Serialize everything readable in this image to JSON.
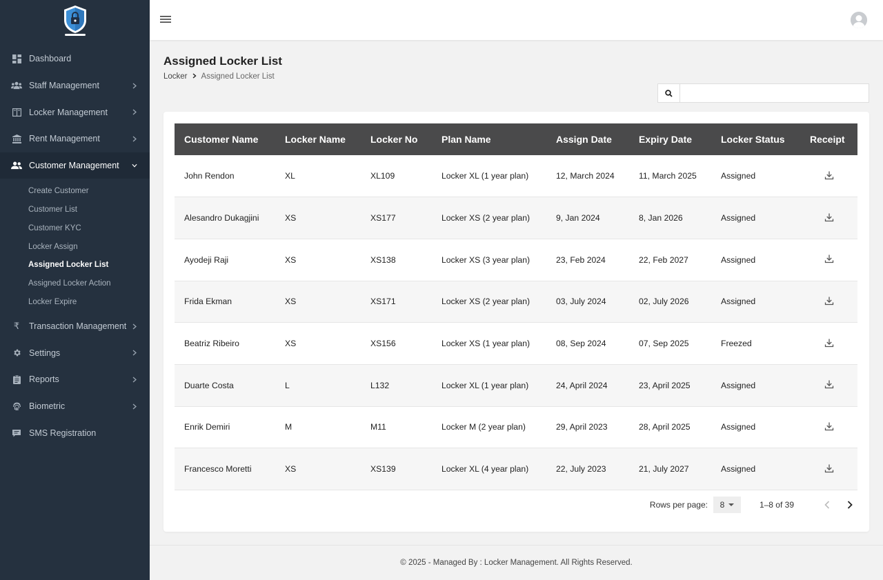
{
  "sidebar": {
    "logo_icon": "shield-lock-icon",
    "items": [
      {
        "label": "Dashboard",
        "icon": "dashboard-icon"
      },
      {
        "label": "Staff Management",
        "icon": "users-icon"
      },
      {
        "label": "Locker Management",
        "icon": "locker-icon"
      },
      {
        "label": "Rent Management",
        "icon": "bank-icon"
      },
      {
        "label": "Customer Management",
        "icon": "user-group-icon"
      },
      {
        "label": "Transaction Management",
        "icon": "rupee-icon"
      },
      {
        "label": "Settings",
        "icon": "gear-icon"
      },
      {
        "label": "Reports",
        "icon": "clipboard-icon"
      },
      {
        "label": "Biometric",
        "icon": "fingerprint-icon"
      },
      {
        "label": "SMS Registration",
        "icon": "sms-icon"
      }
    ],
    "customer_sub": [
      "Create Customer",
      "Customer List",
      "Customer KYC",
      "Locker Assign",
      "Assigned Locker List",
      "Assigned Locker Action",
      "Locker Expire"
    ]
  },
  "header": {
    "menu_icon": "hamburger-icon",
    "avatar_icon": "user-avatar-icon"
  },
  "page": {
    "title": "Assigned Locker List",
    "breadcrumb": {
      "root": "Locker",
      "current": "Assigned Locker List"
    }
  },
  "search": {
    "value": "",
    "placeholder": ""
  },
  "table": {
    "headers": [
      "Customer Name",
      "Locker Name",
      "Locker No",
      "Plan Name",
      "Assign Date",
      "Expiry Date",
      "Locker Status",
      "Receipt"
    ],
    "rows": [
      [
        "John Rendon",
        "XL",
        "XL109",
        "Locker XL (1 year plan)",
        "12, March 2024",
        "11, March 2025",
        "Assigned"
      ],
      [
        "Alesandro Dukagjini",
        "XS",
        "XS177",
        "Locker XS (2 year plan)",
        "9, Jan 2024",
        "8, Jan 2026",
        "Assigned"
      ],
      [
        "Ayodeji Raji",
        "XS",
        "XS138",
        "Locker XS (3 year plan)",
        "23, Feb 2024",
        "22, Feb 2027",
        "Assigned"
      ],
      [
        "Frida Ekman",
        "XS",
        "XS171",
        "Locker XS (2 year plan)",
        "03, July 2024",
        "02, July 2026",
        "Assigned"
      ],
      [
        "Beatriz Ribeiro",
        "XS",
        "XS156",
        "Locker XS (1 year plan)",
        "08, Sep 2024",
        "07, Sep 2025",
        "Freezed"
      ],
      [
        "Duarte Costa",
        "L",
        "L132",
        "Locker XL (1 year plan)",
        "24, April 2024",
        "23, April 2025",
        "Assigned"
      ],
      [
        "Enrik Demiri",
        "M",
        "M11",
        "Locker M (2 year plan)",
        "29, April 2023",
        "28, April 2025",
        "Assigned"
      ],
      [
        "Francesco Moretti",
        "XS",
        "XS139",
        "Locker XL (4 year plan)",
        "22, July 2023",
        "21, July 2027",
        "Assigned"
      ]
    ]
  },
  "pagination": {
    "rows_per_page_label": "Rows per page:",
    "rows_per_page": "8",
    "range": "1–8 of 39"
  },
  "footer": {
    "text": "© 2025 - Managed By : Locker Management. All Rights Reserved."
  },
  "colors": {
    "sidebar": "#25313f",
    "table_header": "#4a4a4b",
    "background": "#f2f2f2"
  }
}
